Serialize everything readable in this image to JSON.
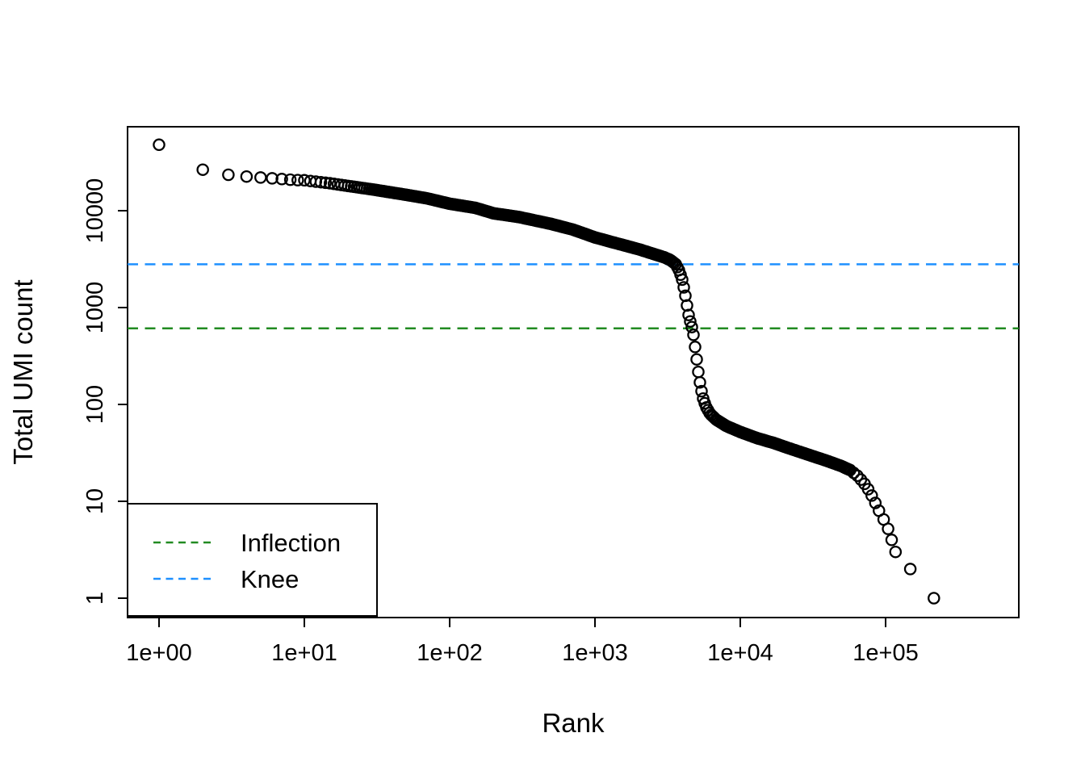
{
  "chart_data": {
    "type": "scatter",
    "title": "",
    "xlabel": "Rank",
    "ylabel": "Total UMI count",
    "x_scale": "log10",
    "y_scale": "log10",
    "grid": false,
    "point_style": {
      "shape": "open-circle",
      "color": "#000000"
    },
    "x_ticks": [
      {
        "value": 1,
        "label": "1e+00"
      },
      {
        "value": 10,
        "label": "1e+01"
      },
      {
        "value": 100,
        "label": "1e+02"
      },
      {
        "value": 1000,
        "label": "1e+03"
      },
      {
        "value": 10000,
        "label": "1e+04"
      },
      {
        "value": 100000,
        "label": "1e+05"
      }
    ],
    "y_ticks": [
      {
        "value": 1,
        "label": "1"
      },
      {
        "value": 10,
        "label": "10"
      },
      {
        "value": 100,
        "label": "100"
      },
      {
        "value": 1000,
        "label": "1000"
      },
      {
        "value": 10000,
        "label": "10000"
      }
    ],
    "xlim": [
      0.6,
      830000
    ],
    "ylim": [
      0.63,
      75000
    ],
    "knee_line": {
      "label": "Knee",
      "value": 2800,
      "color": "#1E90FF",
      "style": "dashed"
    },
    "inflection_line": {
      "label": "Inflection",
      "value": 610,
      "color": "#228B22",
      "style": "dashed"
    },
    "legend": {
      "position": "bottomleft",
      "items": [
        {
          "label": "Inflection",
          "color": "#228B22",
          "line_style": "dashed"
        },
        {
          "label": "Knee",
          "color": "#1E90FF",
          "line_style": "dashed"
        }
      ]
    },
    "series": [
      {
        "name": "barcode-rank-curve",
        "description": "Total UMI count per barcode vs log-rank; anchors are (rank, count) points read from the plot",
        "anchors": [
          [
            1,
            48000
          ],
          [
            2,
            26500
          ],
          [
            3,
            23500
          ],
          [
            4,
            22500
          ],
          [
            5,
            22000
          ],
          [
            6,
            21600
          ],
          [
            7,
            21200
          ],
          [
            8,
            20900
          ],
          [
            9,
            20700
          ],
          [
            10,
            20600
          ],
          [
            15,
            19200
          ],
          [
            20,
            18000
          ],
          [
            30,
            16500
          ],
          [
            50,
            14600
          ],
          [
            70,
            13400
          ],
          [
            100,
            11800
          ],
          [
            150,
            10700
          ],
          [
            200,
            9400
          ],
          [
            300,
            8600
          ],
          [
            500,
            7300
          ],
          [
            700,
            6400
          ],
          [
            1000,
            5300
          ],
          [
            1340,
            4700
          ],
          [
            2000,
            4000
          ],
          [
            2500,
            3600
          ],
          [
            3000,
            3300
          ],
          [
            3300,
            3100
          ],
          [
            3600,
            2800
          ],
          [
            3800,
            2400
          ],
          [
            4000,
            1900
          ],
          [
            4200,
            1300
          ],
          [
            4400,
            850
          ],
          [
            4600,
            650
          ],
          [
            4700,
            600
          ],
          [
            4800,
            480
          ],
          [
            5000,
            300
          ],
          [
            5200,
            190
          ],
          [
            5500,
            120
          ],
          [
            5800,
            95
          ],
          [
            6200,
            80
          ],
          [
            6800,
            70
          ],
          [
            8000,
            60
          ],
          [
            10000,
            52
          ],
          [
            13000,
            45
          ],
          [
            17000,
            40
          ],
          [
            22000,
            35
          ],
          [
            30000,
            30
          ],
          [
            40000,
            26
          ],
          [
            50000,
            23
          ],
          [
            57000,
            21
          ],
          [
            65000,
            18
          ],
          [
            72000,
            15
          ],
          [
            78000,
            12.5
          ],
          [
            84000,
            10
          ],
          [
            90000,
            8
          ]
        ],
        "tail_points": [
          [
            97000,
            6.5
          ],
          [
            104000,
            5.2
          ],
          [
            110000,
            4
          ],
          [
            117000,
            3
          ],
          [
            148000,
            2
          ],
          [
            215000,
            1
          ]
        ]
      }
    ]
  }
}
